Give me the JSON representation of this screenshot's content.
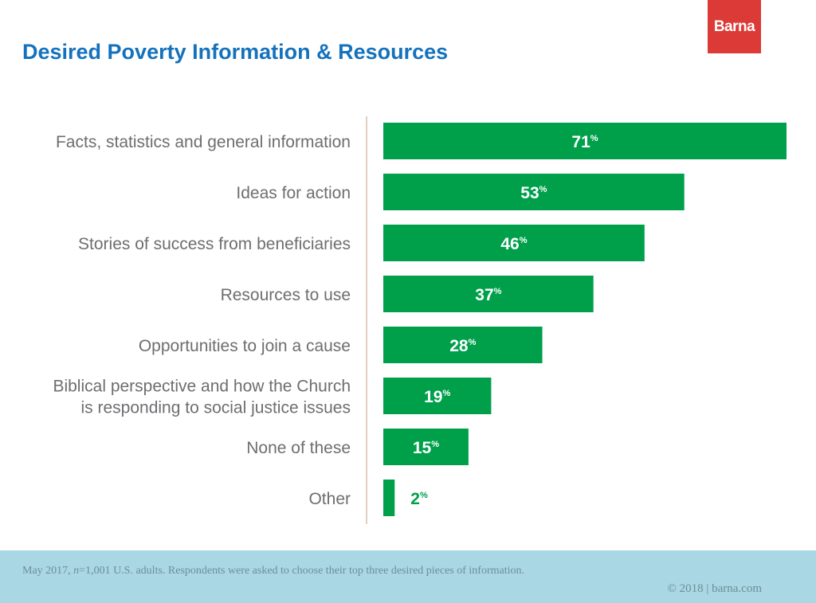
{
  "brand": {
    "logo_text": "Barna",
    "color": "#dc3a36"
  },
  "title": "Desired Poverty Information & Resources",
  "colors": {
    "title": "#1472bd",
    "bar": "#00a04b",
    "footer": "#a9d7e3",
    "axis": "#e3cfc1"
  },
  "chart_data": {
    "type": "bar",
    "orientation": "horizontal",
    "title": "Desired Poverty Information & Resources",
    "categories": [
      [
        "Facts, statistics and general information"
      ],
      [
        "Ideas for action"
      ],
      [
        "Stories of success from beneficiaries"
      ],
      [
        "Resources to use"
      ],
      [
        "Opportunities to join a cause"
      ],
      [
        "Biblical perspective and how the Church",
        "is responding to social justice issues"
      ],
      [
        "None of these"
      ],
      [
        "Other"
      ]
    ],
    "values": [
      71,
      53,
      46,
      37,
      28,
      19,
      15,
      2
    ],
    "value_suffix": "%",
    "xlim": [
      0,
      71
    ],
    "grid": false,
    "legend": "none"
  },
  "footer": {
    "note_prefix": "May 2017, ",
    "note_n": "n",
    "note_rest": "=1,001 U.S. adults. Respondents were asked to choose their top three desired pieces of information.",
    "copyright": "© 2018 | barna.com"
  }
}
